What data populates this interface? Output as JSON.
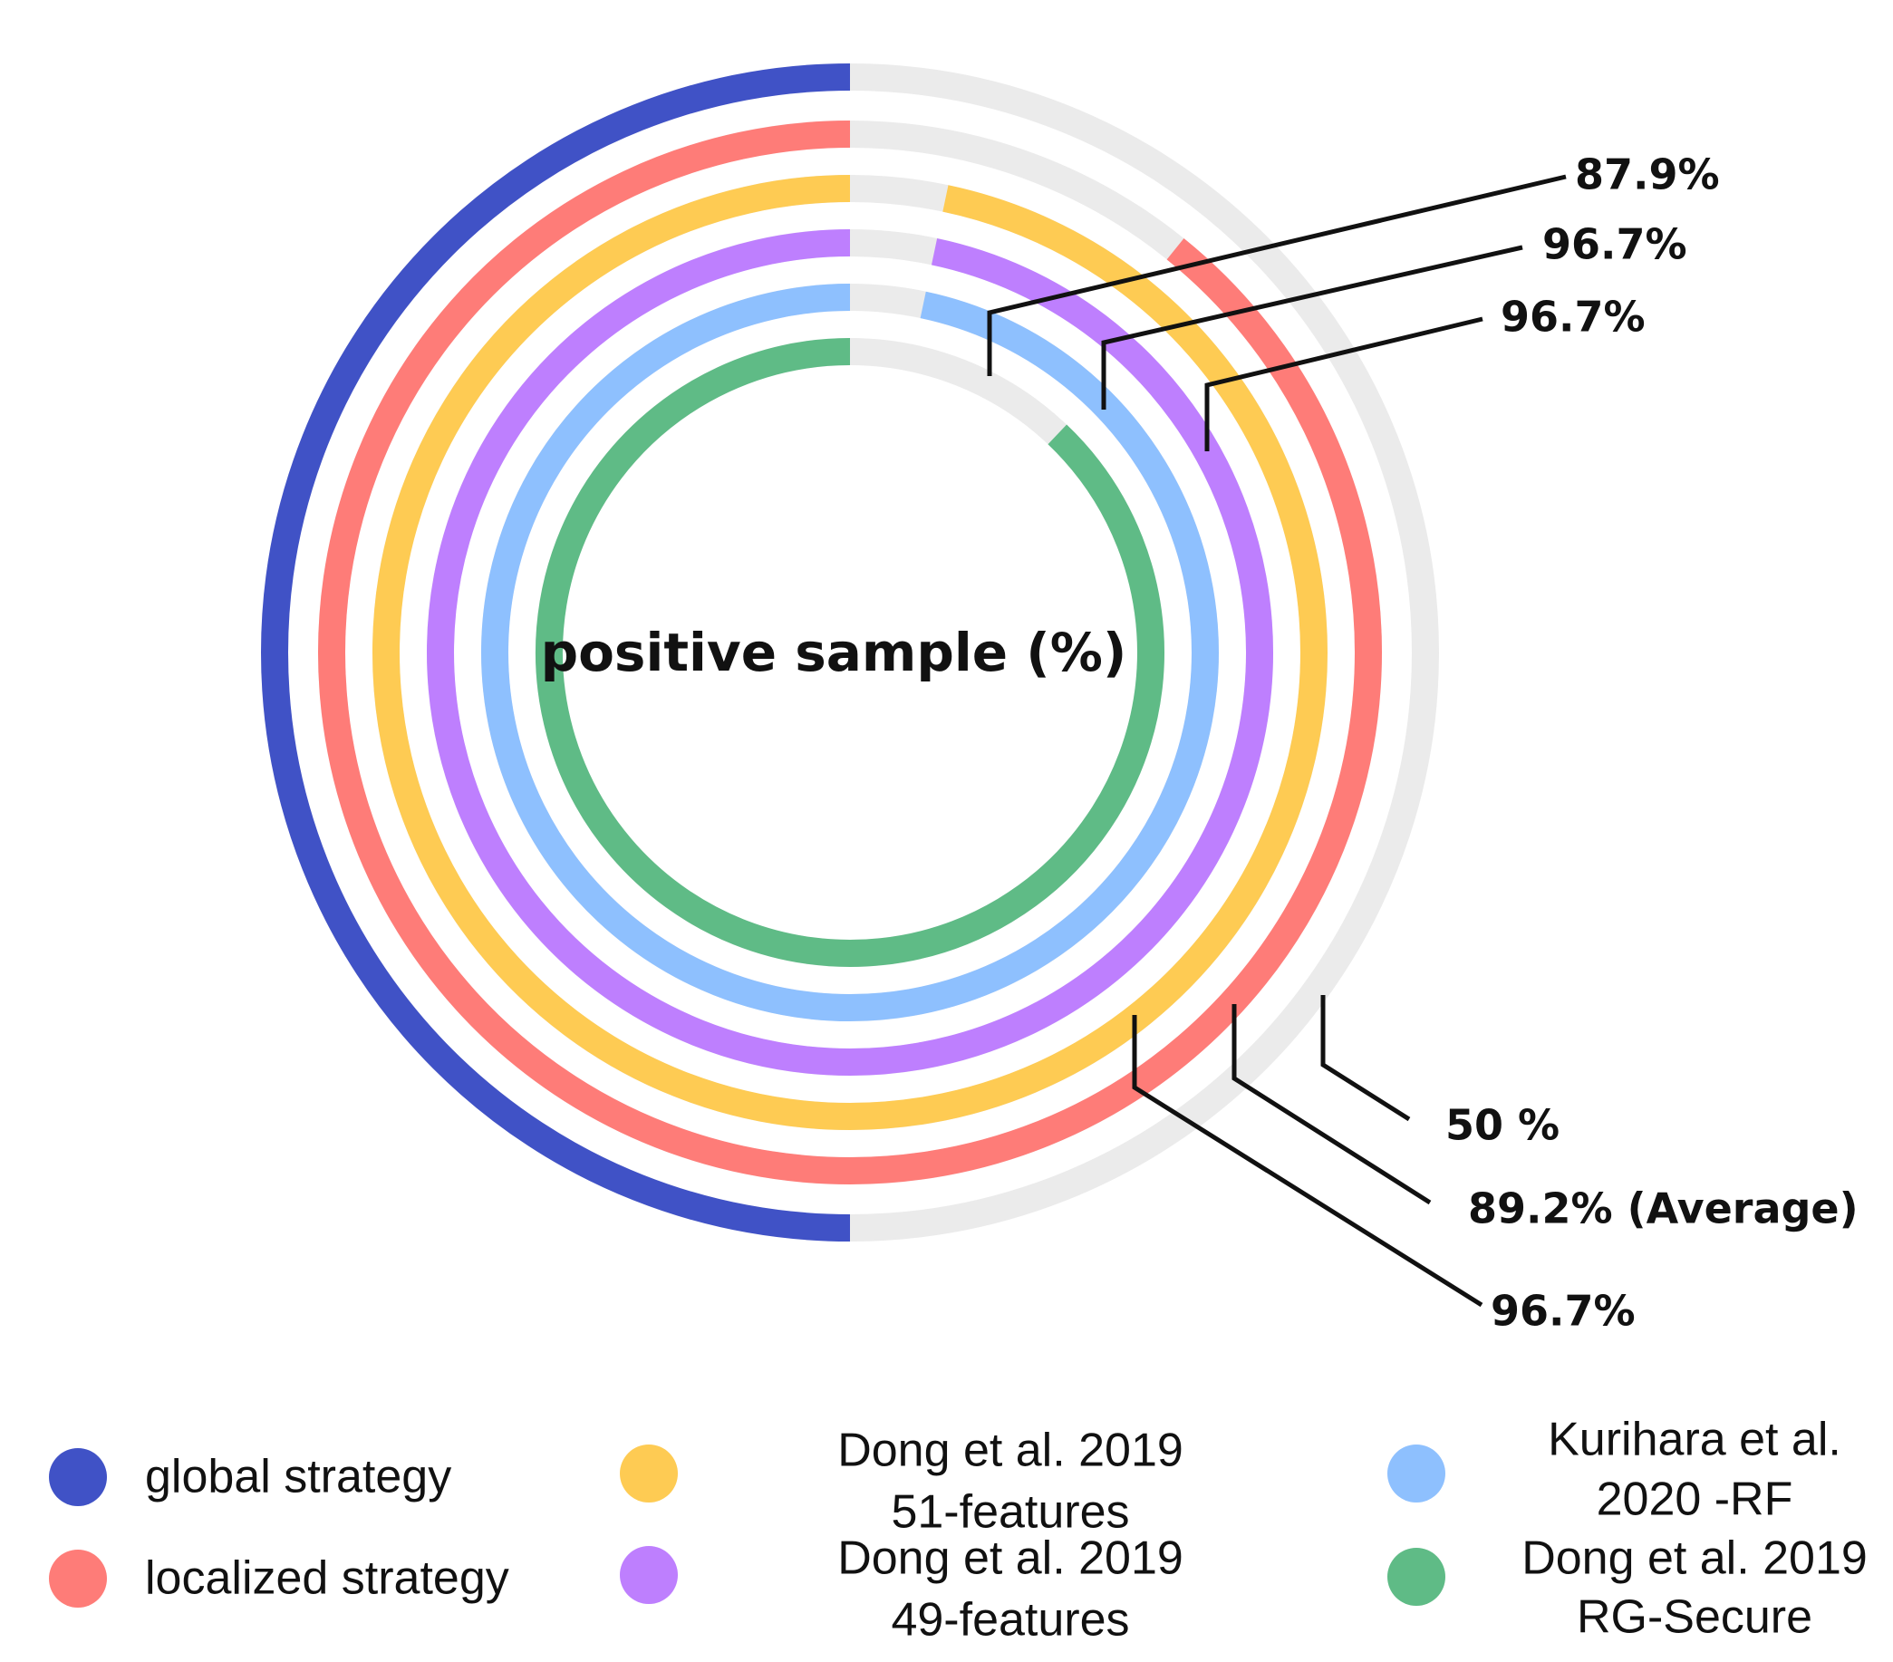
{
  "chart_data": {
    "type": "radial-bar",
    "title": "positive sample (%)",
    "track_color": "#ebebeb",
    "series": [
      {
        "name": "global strategy",
        "value": 50,
        "label": "50 %",
        "color": "#4052c6"
      },
      {
        "name": "localized strategy",
        "value": 89.2,
        "label": "89.2% (Average)",
        "color": "#fe7c78"
      },
      {
        "name": "Dong et al. 2019 51-features",
        "value": 96.7,
        "label": "96.7%",
        "color": "#fecb53"
      },
      {
        "name": "Dong et al. 2019 49-features",
        "value": 96.7,
        "label": "96.7%",
        "color": "#be7ffe"
      },
      {
        "name": "Kurihara et al. 2020 -RF",
        "value": 96.7,
        "label": "96.7%",
        "color": "#8ec0fe"
      },
      {
        "name": "Dong et al. 2019 RG-Secure",
        "value": 87.9,
        "label": "87.9%",
        "color": "#5fbb86"
      }
    ]
  },
  "legend": [
    {
      "lines": [
        "global strategy"
      ],
      "color": "#4052c6"
    },
    {
      "lines": [
        "localized strategy"
      ],
      "color": "#fe7c78"
    },
    {
      "lines": [
        "Dong et al. 2019",
        "51-features"
      ],
      "color": "#fecb53"
    },
    {
      "lines": [
        "Dong et al. 2019",
        "49-features"
      ],
      "color": "#be7ffe"
    },
    {
      "lines": [
        "Kurihara et al.",
        "2020 -RF"
      ],
      "color": "#8ec0fe"
    },
    {
      "lines": [
        "Dong et al. 2019",
        "RG-Secure"
      ],
      "color": "#5fbb86"
    }
  ]
}
